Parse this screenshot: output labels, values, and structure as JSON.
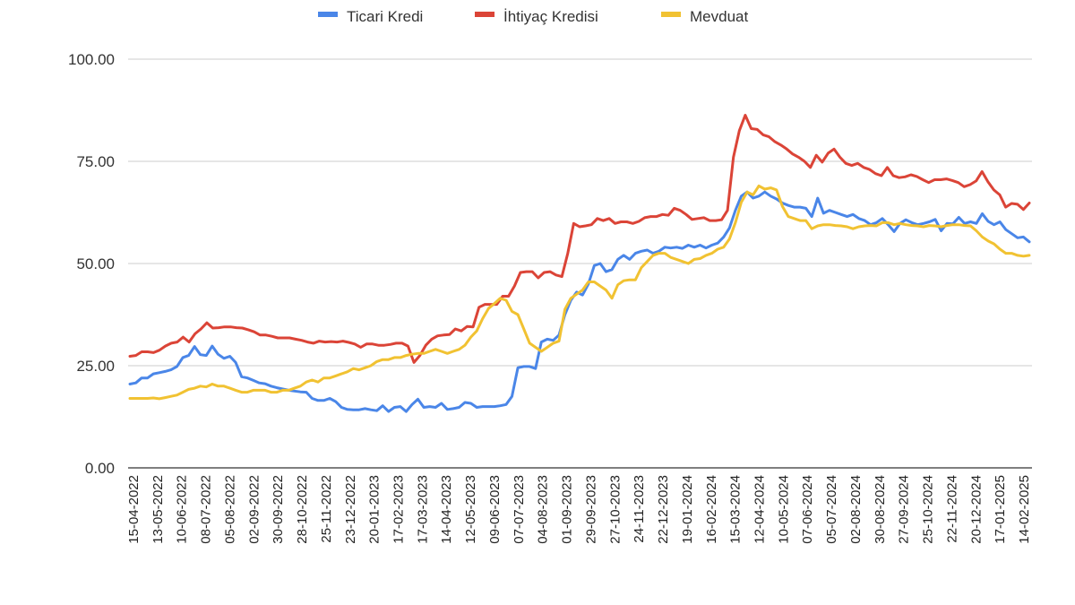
{
  "chart_data": {
    "type": "line",
    "title": "",
    "xlabel": "",
    "ylabel": "",
    "ylim": [
      0,
      100
    ],
    "yticks": [
      "0.00",
      "25.00",
      "50.00",
      "75.00",
      "100.00"
    ],
    "grid": true,
    "legend_position": "top",
    "x_tick_labels": [
      "15-04-2022",
      "13-05-2022",
      "10-06-2022",
      "08-07-2022",
      "05-08-2022",
      "02-09-2022",
      "30-09-2022",
      "28-10-2022",
      "25-11-2022",
      "23-12-2022",
      "20-01-2023",
      "17-02-2023",
      "17-03-2023",
      "14-04-2023",
      "12-05-2023",
      "09-06-2023",
      "07-07-2023",
      "04-08-2023",
      "01-09-2023",
      "29-09-2023",
      "27-10-2023",
      "24-11-2023",
      "22-12-2023",
      "19-01-2024",
      "16-02-2024",
      "15-03-2024",
      "12-04-2024",
      "10-05-2024",
      "07-06-2024",
      "05-07-2024",
      "02-08-2024",
      "30-08-2024",
      "27-09-2024",
      "25-10-2024",
      "22-11-2024",
      "20-12-2024",
      "17-01-2025",
      "14-02-2025"
    ],
    "series": [
      {
        "name": "Ticari Kredi",
        "color": "#4a86e8",
        "values": [
          20.5,
          20.8,
          22,
          22,
          23,
          23.3,
          23.6,
          24,
          24.8,
          27,
          27.5,
          29.7,
          27.7,
          27.5,
          29.8,
          27.8,
          26.8,
          27.3,
          25.8,
          22.3,
          22,
          21.4,
          20.8,
          20.6,
          20,
          19.6,
          19.3,
          19,
          18.8,
          18.6,
          18.5,
          17,
          16.5,
          16.5,
          17,
          16.2,
          14.8,
          14.3,
          14.2,
          14.2,
          14.5,
          14.2,
          14,
          15.2,
          13.8,
          14.8,
          15,
          13.8,
          15.5,
          16.8,
          14.8,
          15,
          14.8,
          15.8,
          14.3,
          14.5,
          14.8,
          16,
          15.8,
          14.8,
          15,
          15,
          15,
          15.2,
          15.5,
          17.5,
          24.5,
          24.8,
          24.8,
          24.3,
          30.8,
          31.5,
          31.2,
          32.5,
          37.5,
          41,
          43,
          42.3,
          45,
          49.5,
          50,
          48,
          48.5,
          51,
          52,
          51,
          52.5,
          53,
          53.3,
          52.5,
          53,
          54,
          53.8,
          54,
          53.7,
          54.5,
          54,
          54.5,
          53.8,
          54.5,
          55,
          56.5,
          58.7,
          63,
          66.5,
          67.5,
          66,
          66.5,
          67.5,
          66.5,
          65.8,
          64.8,
          64.2,
          63.8,
          63.8,
          63.5,
          61.5,
          66,
          62.3,
          63,
          62.5,
          62,
          61.5,
          62,
          61,
          60.5,
          59.5,
          60,
          61,
          59.5,
          57.8,
          59.8,
          60.7,
          60,
          59.5,
          59.8,
          60.2,
          60.8,
          58,
          59.8,
          59.7,
          61.3,
          59.8,
          60.2,
          59.8,
          62.2,
          60.3,
          59.5,
          60.2,
          58.3,
          57.3,
          56.3,
          56.5,
          55.3
        ]
      },
      {
        "name": "İhtiyaç Kredisi",
        "color": "#db4437",
        "values": [
          27.3,
          27.5,
          28.4,
          28.4,
          28.2,
          28.8,
          29.8,
          30.5,
          30.8,
          32,
          30.8,
          32.8,
          34,
          35.5,
          34.2,
          34.3,
          34.5,
          34.5,
          34.3,
          34.2,
          33.8,
          33.3,
          32.5,
          32.5,
          32.2,
          31.8,
          31.8,
          31.8,
          31.5,
          31.2,
          30.8,
          30.5,
          31,
          30.8,
          30.9,
          30.8,
          31,
          30.7,
          30.3,
          29.5,
          30.3,
          30.3,
          30,
          30,
          30.2,
          30.5,
          30.5,
          29.8,
          25.8,
          27.5,
          30,
          31.5,
          32.3,
          32.5,
          32.6,
          34,
          33.5,
          34.6,
          34.5,
          39.3,
          40,
          40,
          40,
          42,
          42,
          44.5,
          47.8,
          48,
          48,
          46.5,
          47.8,
          48,
          47.2,
          46.8,
          52.5,
          59.8,
          59,
          59.2,
          59.5,
          61,
          60.5,
          61,
          59.8,
          60.2,
          60.2,
          59.8,
          60.3,
          61.2,
          61.5,
          61.5,
          62,
          61.8,
          63.5,
          63,
          62,
          60.8,
          61,
          61.2,
          60.5,
          60.5,
          60.7,
          63,
          76,
          82.5,
          86.3,
          83,
          82.8,
          81.5,
          81,
          79.8,
          79,
          78,
          76.8,
          76,
          75,
          73.5,
          76.5,
          74.8,
          77,
          78,
          76,
          74.5,
          74,
          74.5,
          73.5,
          73,
          72,
          71.5,
          73.5,
          71.5,
          71,
          71.2,
          71.7,
          71.3,
          70.5,
          69.8,
          70.5,
          70.5,
          70.7,
          70.3,
          69.8,
          68.8,
          69.3,
          70.2,
          72.5,
          70,
          68,
          66.8,
          63.8,
          64.7,
          64.5,
          63.2,
          64.8
        ]
      },
      {
        "name": "Mevduat",
        "color": "#f1c232",
        "values": [
          17,
          17,
          17,
          17,
          17.1,
          16.9,
          17.2,
          17.5,
          17.8,
          18.5,
          19.2,
          19.5,
          20,
          19.8,
          20.5,
          20,
          20,
          19.5,
          19,
          18.5,
          18.5,
          19,
          19,
          19,
          18.5,
          18.5,
          19,
          19,
          19.5,
          20,
          21,
          21.5,
          21,
          22,
          22,
          22.5,
          23,
          23.5,
          24.3,
          24,
          24.5,
          25,
          26,
          26.5,
          26.5,
          27,
          27,
          27.5,
          27.8,
          28,
          28,
          28.5,
          29,
          28.5,
          28,
          28.5,
          29,
          30,
          32,
          33.5,
          36.5,
          39,
          40.2,
          41.5,
          41,
          38.3,
          37.5,
          34,
          30.5,
          29.5,
          28.5,
          29.5,
          30.5,
          31,
          38.8,
          41.5,
          42.5,
          43.5,
          45.5,
          45.5,
          44.5,
          43.5,
          41.5,
          44.8,
          45.8,
          46,
          46,
          49,
          50.5,
          52,
          52.5,
          52.5,
          51.5,
          51,
          50.5,
          50,
          51,
          51.2,
          52,
          52.5,
          53.5,
          54,
          56,
          60,
          65,
          67.5,
          66.8,
          69,
          68.2,
          68.5,
          68,
          64,
          61.5,
          61,
          60.5,
          60.5,
          58.5,
          59.2,
          59.5,
          59.5,
          59.3,
          59.2,
          59,
          58.5,
          59,
          59.2,
          59.3,
          59.2,
          60,
          60,
          59.5,
          59.8,
          59.5,
          59.3,
          59.2,
          59,
          59.3,
          59.2,
          59,
          59.3,
          59.5,
          59.5,
          59.3,
          59.2,
          58,
          56.5,
          55.5,
          54.8,
          53.5,
          52.5,
          52.5,
          52,
          51.8,
          52
        ]
      }
    ]
  }
}
